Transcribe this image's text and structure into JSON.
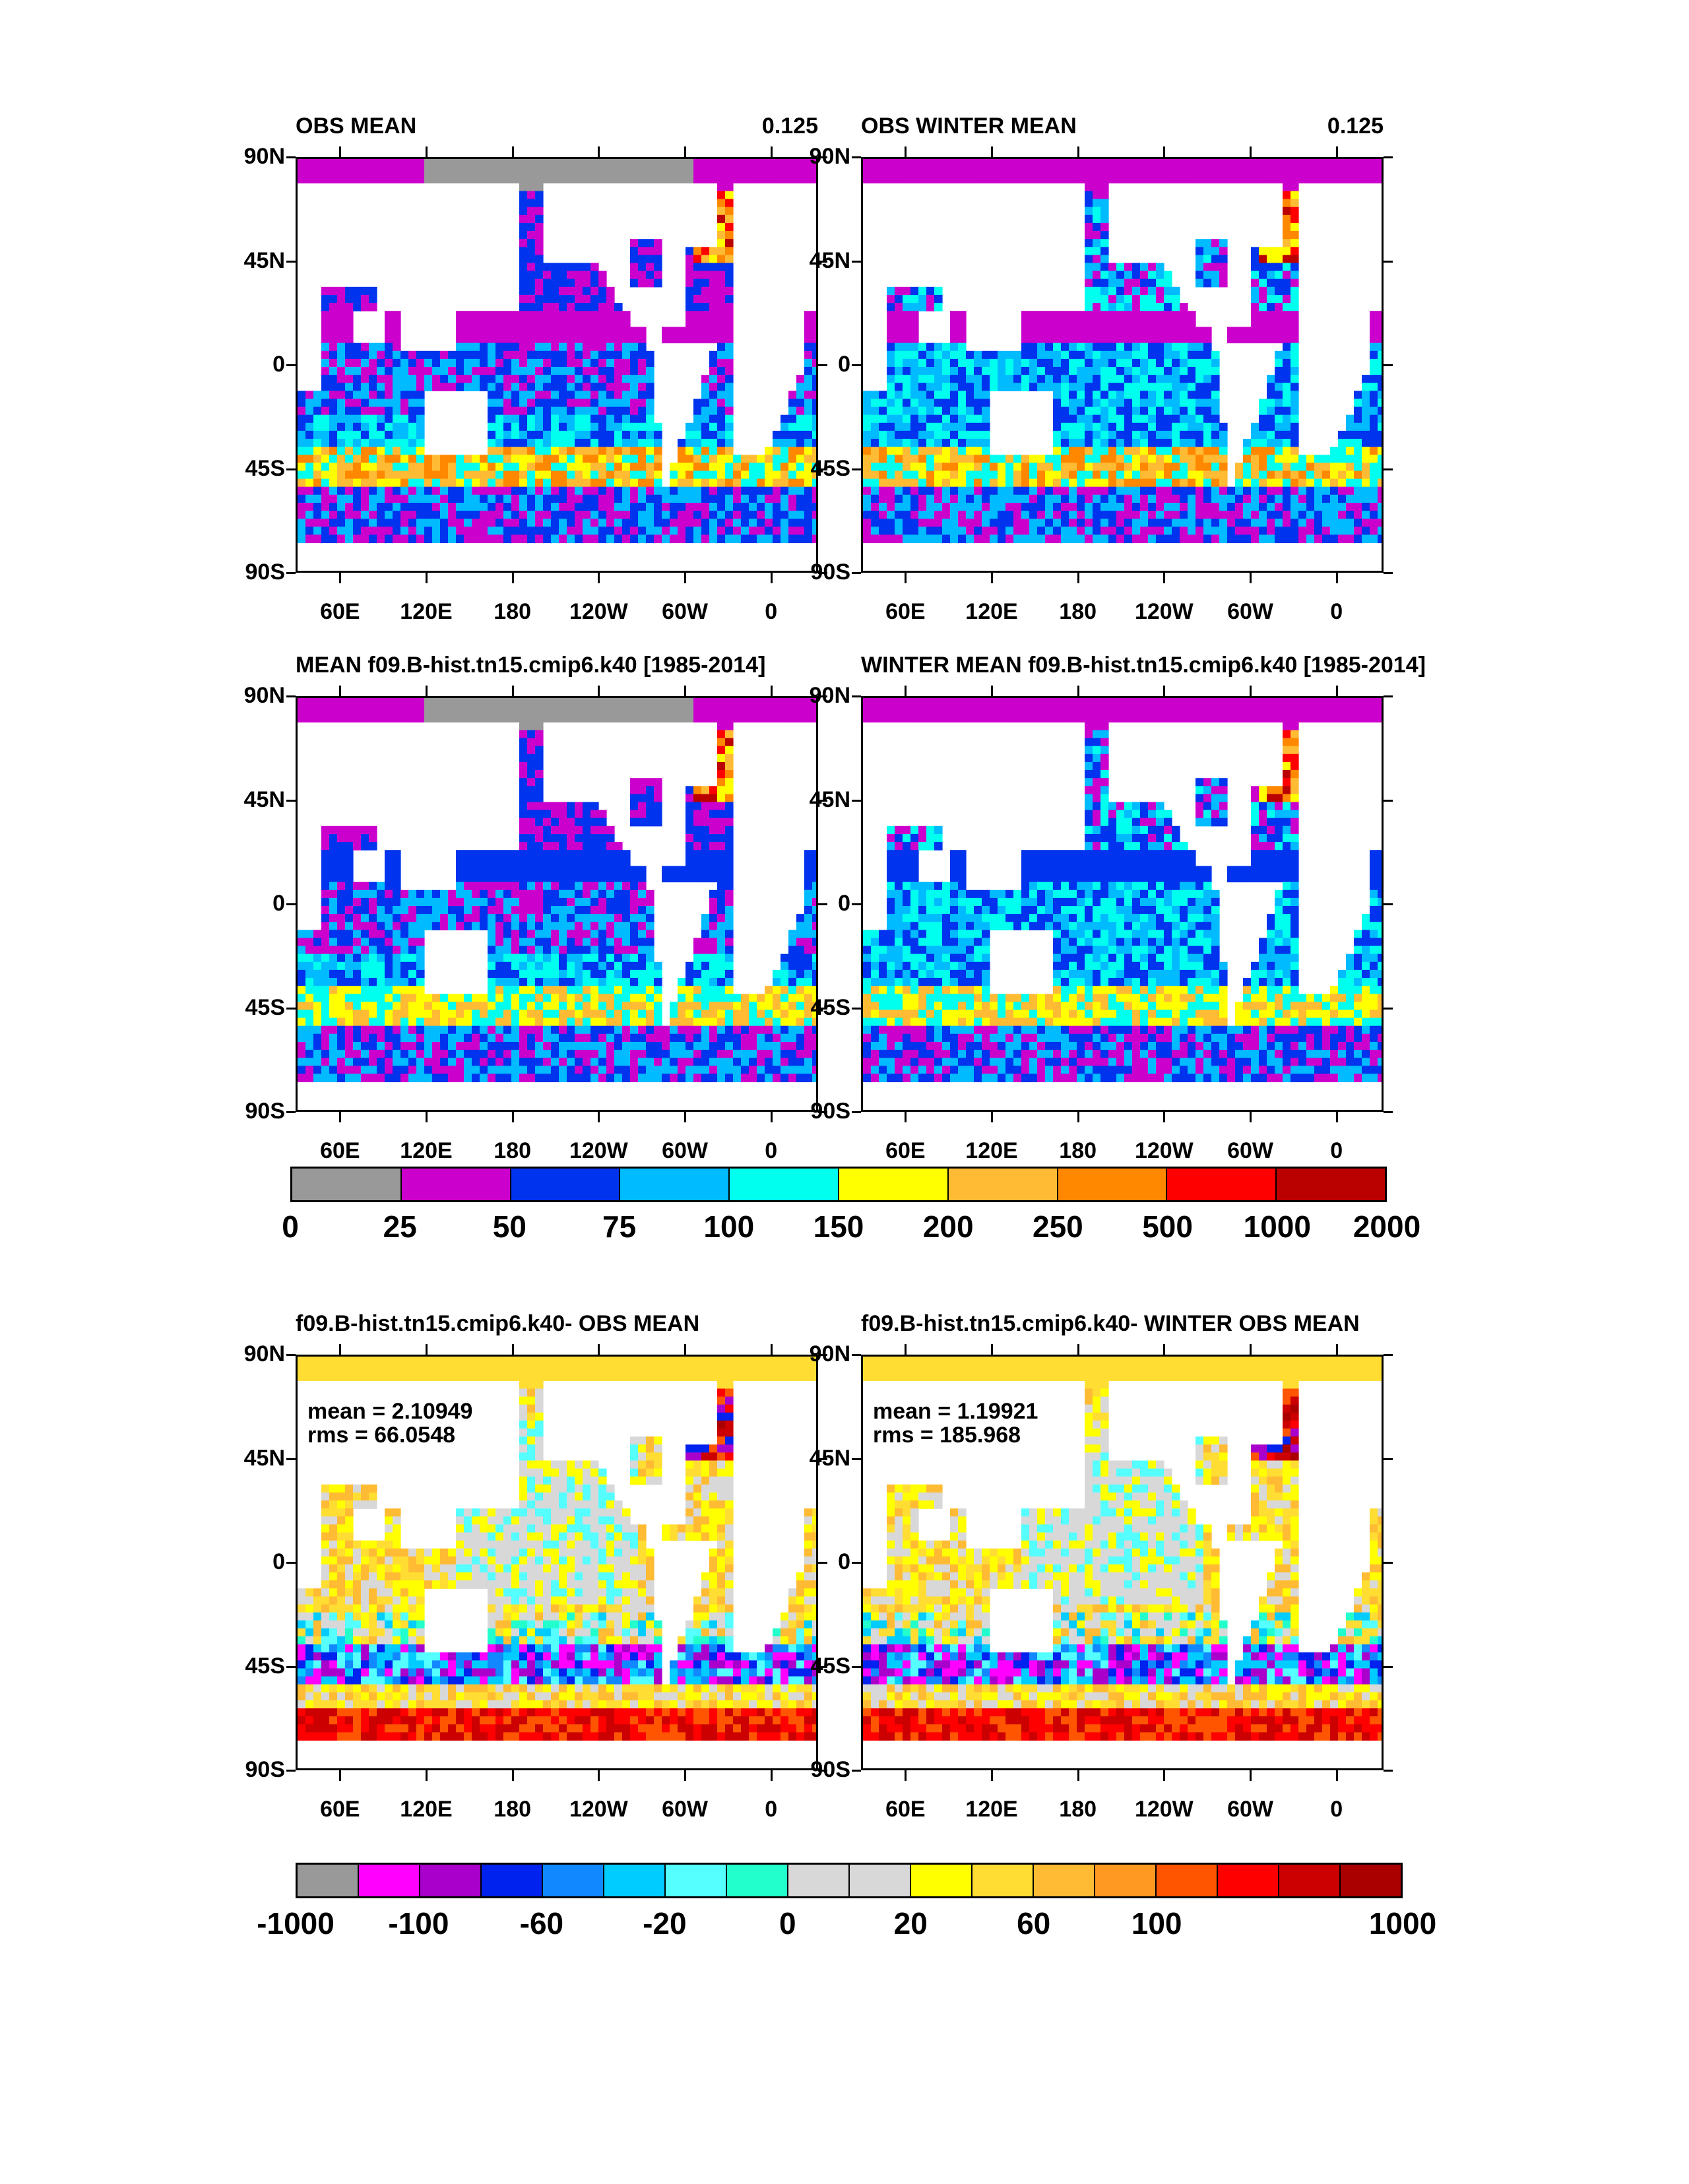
{
  "panels": [
    {
      "id": "p1",
      "title": "OBS MEAN",
      "right": "0.125",
      "palette": "pos",
      "seed": 1,
      "stats": null
    },
    {
      "id": "p2",
      "title": "OBS WINTER MEAN",
      "right": "0.125",
      "palette": "pos",
      "seed": 2,
      "stats": null
    },
    {
      "id": "p3",
      "title": "MEAN f09.B-hist.tn15.cmip6.k40 [1985-2014]",
      "right": "",
      "palette": "pos",
      "seed": 3,
      "stats": null
    },
    {
      "id": "p4",
      "title": "WINTER MEAN f09.B-hist.tn15.cmip6.k40 [1985-2014]",
      "right": "",
      "palette": "pos",
      "seed": 4,
      "stats": null
    },
    {
      "id": "p5",
      "title": "f09.B-hist.tn15.cmip6.k40- OBS MEAN",
      "right": "",
      "palette": "diff",
      "seed": 5,
      "stats": {
        "mean": "mean = 2.10949",
        "rms": "rms = 66.0548"
      }
    },
    {
      "id": "p6",
      "title": "f09.B-hist.tn15.cmip6.k40- WINTER OBS MEAN",
      "right": "",
      "palette": "diff",
      "seed": 6,
      "stats": {
        "mean": "mean = 1.19921",
        "rms": "rms = 185.968"
      }
    }
  ],
  "axes": {
    "lat_labels": [
      "90N",
      "45N",
      "0",
      "45S",
      "90S"
    ],
    "lon_labels": [
      "60E",
      "120E",
      "180",
      "120W",
      "60W",
      "0"
    ]
  },
  "colorbar_top": {
    "colors": [
      "#999999",
      "#cc00cc",
      "#0033ee",
      "#00bbff",
      "#00ffee",
      "#ffff00",
      "#ffbb33",
      "#ff8800",
      "#ff0000",
      "#bb0000"
    ],
    "labels": [
      "0",
      "25",
      "50",
      "75",
      "100",
      "150",
      "200",
      "250",
      "500",
      "1000",
      "2000"
    ]
  },
  "colorbar_bottom": {
    "colors": [
      "#999999",
      "#ff00ff",
      "#aa00cc",
      "#0022ee",
      "#1188ff",
      "#00ccff",
      "#55ffff",
      "#22ffcc",
      "#d8d8d8",
      "#d8d8d8",
      "#ffff00",
      "#ffdd33",
      "#ffbb33",
      "#ff9922",
      "#ff5500",
      "#ff0000",
      "#cc0000",
      "#aa0000"
    ],
    "labels": [
      "-1000",
      "-100",
      "-60",
      "-20",
      "0",
      "20",
      "60",
      "100",
      "1000"
    ]
  },
  "colors": {
    "land": "#ffffff",
    "missing": "#999999"
  }
}
